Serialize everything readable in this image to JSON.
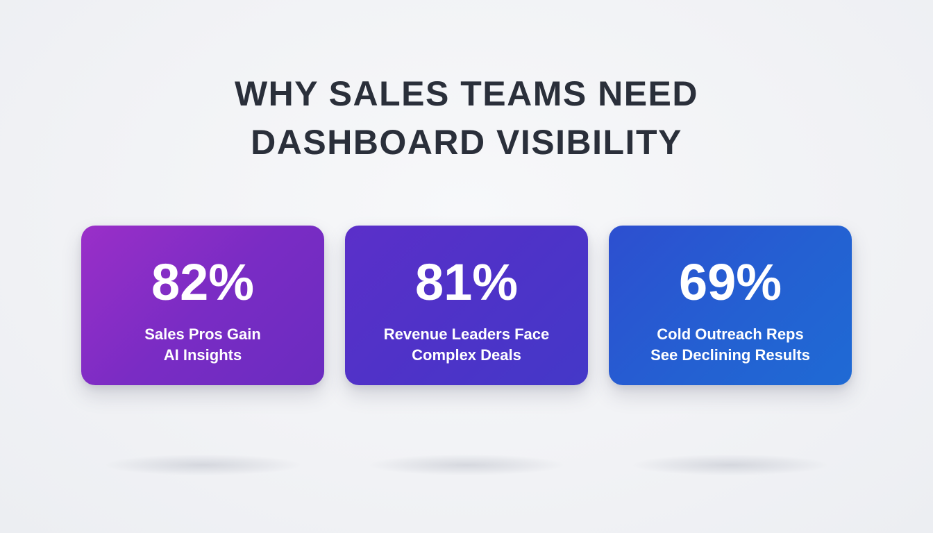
{
  "title": {
    "line1": "WHY SALES TEAMS NEED",
    "line2": "DASHBOARD VISIBILITY"
  },
  "stats": [
    {
      "value": "82%",
      "label_line1": "Sales Pros Gain",
      "label_line2": "AI Insights",
      "color": "#8a2ec6"
    },
    {
      "value": "81%",
      "label_line1": "Revenue Leaders Face",
      "label_line2": "Complex Deals",
      "color": "#4f34c8"
    },
    {
      "value": "69%",
      "label_line1": "Cold Outreach Reps",
      "label_line2": "See Declining Results",
      "color": "#2660d2"
    }
  ]
}
